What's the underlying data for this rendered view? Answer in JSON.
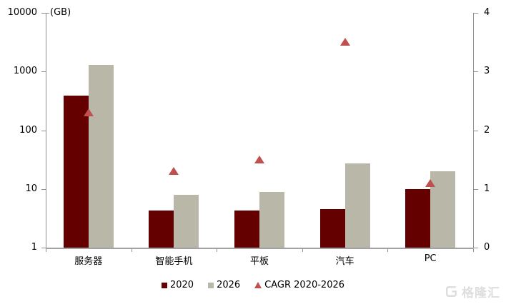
{
  "chart_data": {
    "type": "bar",
    "title": "",
    "unit_label": "(GB)",
    "categories": [
      "服务器",
      "智能手机",
      "平板",
      "汽车",
      "PC"
    ],
    "series": [
      {
        "name": "2020",
        "color": "#650000",
        "values": [
          390,
          4.3,
          4.3,
          4.5,
          10
        ]
      },
      {
        "name": "2026",
        "color": "#b9b7a7",
        "values": [
          1300,
          8,
          9,
          27,
          20
        ]
      }
    ],
    "markers": {
      "name": "CAGR 2020-2026",
      "type": "triangle",
      "color": "#c0504d",
      "values": [
        2.3,
        1.3,
        1.5,
        3.5,
        1.1
      ]
    },
    "left_axis": {
      "scale": "log",
      "ticks": [
        10000,
        1000,
        100,
        10,
        1
      ],
      "range": [
        1,
        10000
      ]
    },
    "right_axis": {
      "scale": "linear",
      "ticks": [
        4,
        3,
        2,
        1,
        0
      ],
      "range": [
        0,
        4
      ]
    },
    "legend_position": "bottom",
    "grid": false,
    "axis_color": "#8f8f8f"
  },
  "watermark": {
    "text": "格隆汇"
  }
}
